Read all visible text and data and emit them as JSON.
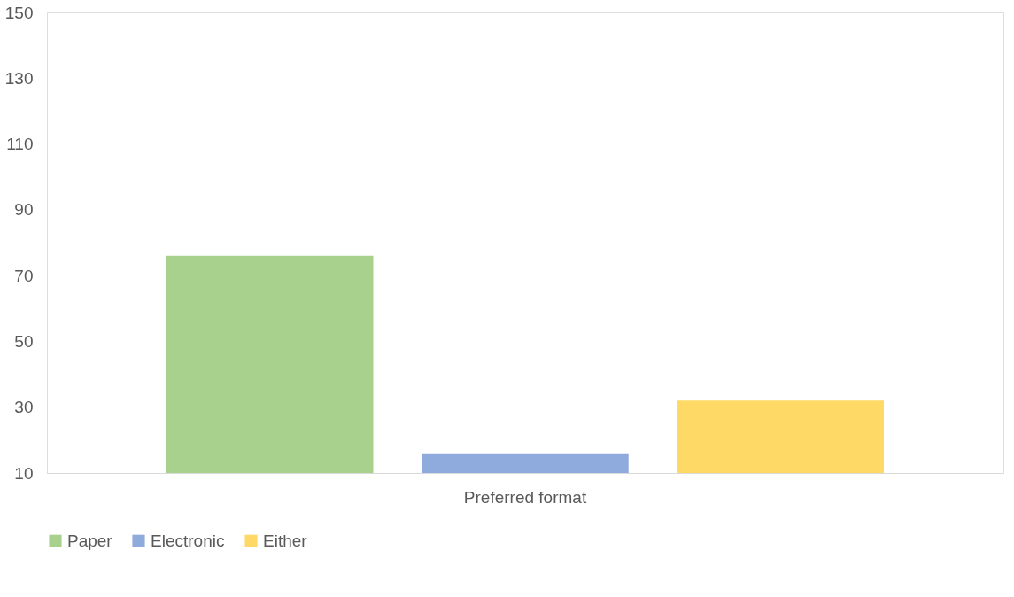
{
  "chart_data": {
    "type": "bar",
    "categories": [
      "Preferred format"
    ],
    "series": [
      {
        "name": "Paper",
        "color": "#a9d18e",
        "values": [
          76
        ]
      },
      {
        "name": "Electronic",
        "color": "#8faadc",
        "values": [
          16
        ]
      },
      {
        "name": "Either",
        "color": "#ffd966",
        "values": [
          32
        ]
      }
    ],
    "ylim": [
      10,
      150
    ],
    "yticks": [
      10,
      30,
      50,
      70,
      90,
      110,
      130,
      150
    ],
    "grid": false,
    "legend": "bottom"
  }
}
